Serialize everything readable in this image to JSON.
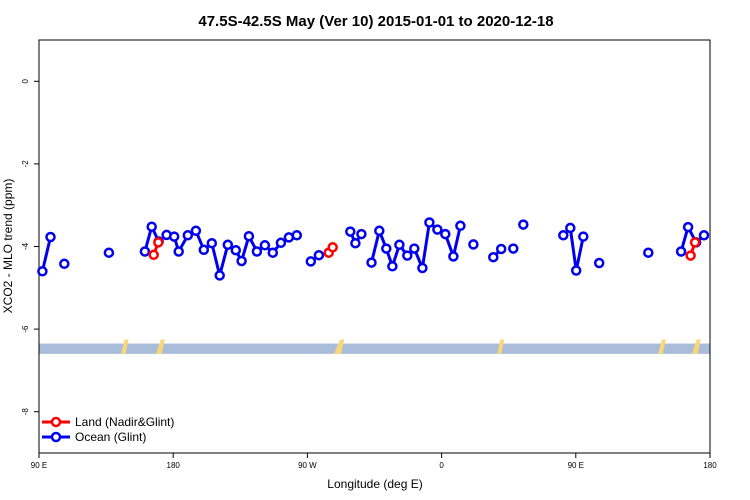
{
  "chart_data": {
    "type": "line",
    "title": "47.5S-42.5S May (Ver 10)   2015-01-01 to 2020-12-18",
    "xlabel": "Longitude (deg E)",
    "ylabel": "XCO2 - MLO trend (ppm)",
    "xlim": [
      90,
      540
    ],
    "ylim": [
      -9,
      1
    ],
    "x_ticks": [
      {
        "value": 90,
        "label": "90 E"
      },
      {
        "value": 180,
        "label": "180"
      },
      {
        "value": 270,
        "label": "90 W"
      },
      {
        "value": 360,
        "label": "0"
      },
      {
        "value": 450,
        "label": "90 E"
      },
      {
        "value": 540,
        "label": "180"
      }
    ],
    "y_ticks": [
      0,
      -2,
      -4,
      -6,
      -8
    ],
    "grid": false,
    "legend_position": "bottom-left",
    "colors": {
      "land": "#ff0000",
      "ocean": "#0000ee",
      "land_band": "#a9bcd9",
      "continent": "#f7d77a"
    },
    "map_band": {
      "y_from": -6.35,
      "y_to": -6.6
    },
    "series": [
      {
        "name": "Land (Nadir&Glint)",
        "color": "#ff0000",
        "points": [
          [
            170.0,
            -3.9
          ],
          [
            166.9,
            -4.2
          ]
        ]
      },
      {
        "name": "Ocean (Glint)",
        "color": "#0000ee",
        "segments": [
          [
            [
              92.3,
              -4.6
            ],
            [
              97.7,
              -3.77
            ]
          ],
          [
            [
              107.0,
              -4.42
            ]
          ],
          [
            [
              136.9,
              -4.15
            ]
          ],
          [
            [
              161.0,
              -4.12
            ],
            [
              165.6,
              -3.52
            ],
            [
              170.3,
              -3.88
            ],
            [
              175.6,
              -3.72
            ],
            [
              180.7,
              -3.76
            ],
            [
              183.7,
              -4.12
            ],
            [
              189.8,
              -3.73
            ],
            [
              195.2,
              -3.62
            ],
            [
              200.5,
              -4.08
            ],
            [
              205.9,
              -3.92
            ],
            [
              211.2,
              -4.7
            ],
            [
              216.6,
              -3.96
            ],
            [
              222.0,
              -4.09
            ],
            [
              225.9,
              -4.35
            ],
            [
              230.8,
              -3.75
            ],
            [
              236.1,
              -4.12
            ],
            [
              241.5,
              -3.97
            ],
            [
              246.8,
              -4.15
            ],
            [
              252.2,
              -3.91
            ],
            [
              257.6,
              -3.78
            ],
            [
              262.9,
              -3.73
            ]
          ],
          [
            [
              272.3,
              -4.36
            ],
            [
              277.7,
              -4.21
            ]
          ],
          [
            [
              298.8,
              -3.64
            ],
            [
              302.2,
              -3.92
            ],
            [
              306.2,
              -3.7
            ]
          ],
          [
            [
              313.0,
              -4.39
            ],
            [
              318.2,
              -3.62
            ],
            [
              322.9,
              -4.05
            ],
            [
              327.0,
              -4.48
            ],
            [
              331.7,
              -3.96
            ],
            [
              337.0,
              -4.22
            ],
            [
              341.7,
              -4.05
            ],
            [
              347.1,
              -4.52
            ],
            [
              351.8,
              -3.42
            ],
            [
              357.2,
              -3.59
            ],
            [
              362.5,
              -3.7
            ],
            [
              367.9,
              -4.24
            ],
            [
              372.6,
              -3.5
            ]
          ],
          [
            [
              381.3,
              -3.95
            ]
          ],
          [
            [
              394.7,
              -4.26
            ],
            [
              400.0,
              -4.06
            ]
          ],
          [
            [
              408.1,
              -4.05
            ]
          ],
          [
            [
              414.8,
              -3.47
            ]
          ],
          [
            [
              441.6,
              -3.73
            ],
            [
              446.3,
              -3.55
            ],
            [
              450.3,
              -4.58
            ],
            [
              455.0,
              -3.76
            ]
          ],
          [
            [
              465.7,
              -4.4
            ]
          ],
          [
            [
              498.6,
              -4.15
            ]
          ],
          [
            [
              520.6,
              -4.12
            ],
            [
              525.3,
              -3.53
            ],
            [
              530.7,
              -3.9
            ],
            [
              536.0,
              -3.73
            ]
          ]
        ]
      }
    ]
  }
}
